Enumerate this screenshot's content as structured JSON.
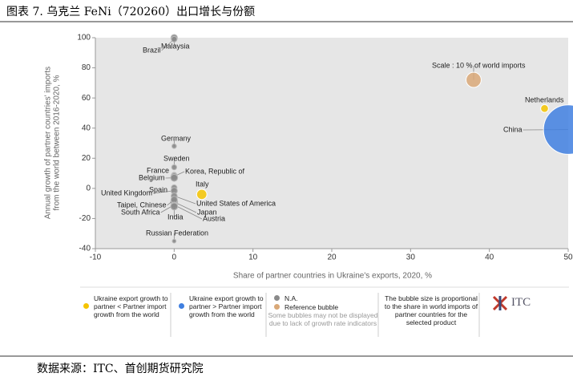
{
  "header": {
    "title": "图表 7.   乌克兰 FeNi（720260）出口增长与份额"
  },
  "source": "数据来源：ITC、首创期货研究院",
  "chart_data": {
    "type": "scatter",
    "x_label": "Share of partner countries in Ukraine's exports, 2020, %",
    "y_label": [
      "Annual growth of partner countries' imports",
      "from the world between 2016-2020, %"
    ],
    "xlim": [
      -10,
      50
    ],
    "xticks": [
      -10,
      0,
      10,
      20,
      30,
      40,
      50
    ],
    "ylim": [
      -40,
      100
    ],
    "yticks": [
      -40,
      -20,
      0,
      20,
      40,
      60,
      80,
      100
    ],
    "grid": false,
    "series": [
      {
        "name": "Ukraine export growth to partner < Partner import growth from the world",
        "color": "#f5c400",
        "labels": [
          "Italy",
          "Netherlands"
        ],
        "x": [
          3.5,
          47
        ],
        "values": [
          -4,
          53
        ],
        "sizes": [
          4,
          2
        ]
      },
      {
        "name": "Ukraine export growth to partner > Partner import growth from the world",
        "color": "#3f7fe0",
        "labels": [
          "China"
        ],
        "x": [
          50
        ],
        "values": [
          39
        ],
        "sizes": [
          130
        ]
      },
      {
        "name": "N.A.",
        "color": "#8a8a8a",
        "labels": [
          "Malaysia",
          "Brazil",
          "Germany",
          "Sweden",
          "France",
          "Korea, Republic of",
          "Belgium",
          "Spain",
          "United Kingdom",
          "United States of America",
          "Japan",
          "Austria",
          "Taipei, Chinese",
          "South Africa",
          "India",
          "Russian Federation"
        ],
        "x": [
          0,
          0,
          0,
          0,
          0,
          0,
          0,
          0,
          0,
          0,
          0,
          0,
          0,
          0,
          0,
          0
        ],
        "values": [
          100,
          99,
          28,
          14,
          9,
          8,
          7,
          0.5,
          -1.6,
          -5,
          -9,
          -11,
          -7.5,
          -11,
          -12,
          -35
        ],
        "sizes": [
          1.2,
          0.8,
          0.4,
          0.6,
          0.6,
          1.2,
          1.5,
          0.8,
          1.2,
          1,
          1.5,
          1.2,
          1.2,
          0.8,
          1.5,
          0.2
        ]
      },
      {
        "name": "Reference bubble",
        "color": "#d9a878",
        "labels": [
          "Scale : 10 % of world imports"
        ],
        "x": [
          38
        ],
        "values": [
          72
        ],
        "sizes": [
          10
        ]
      }
    ],
    "legend_note": "Some bubbles may not be displayed due to lack of growth rate indicators",
    "size_note": "The bubble size is proportional to the share in world imports of partner countries for the selected product",
    "logo": "ITC"
  }
}
